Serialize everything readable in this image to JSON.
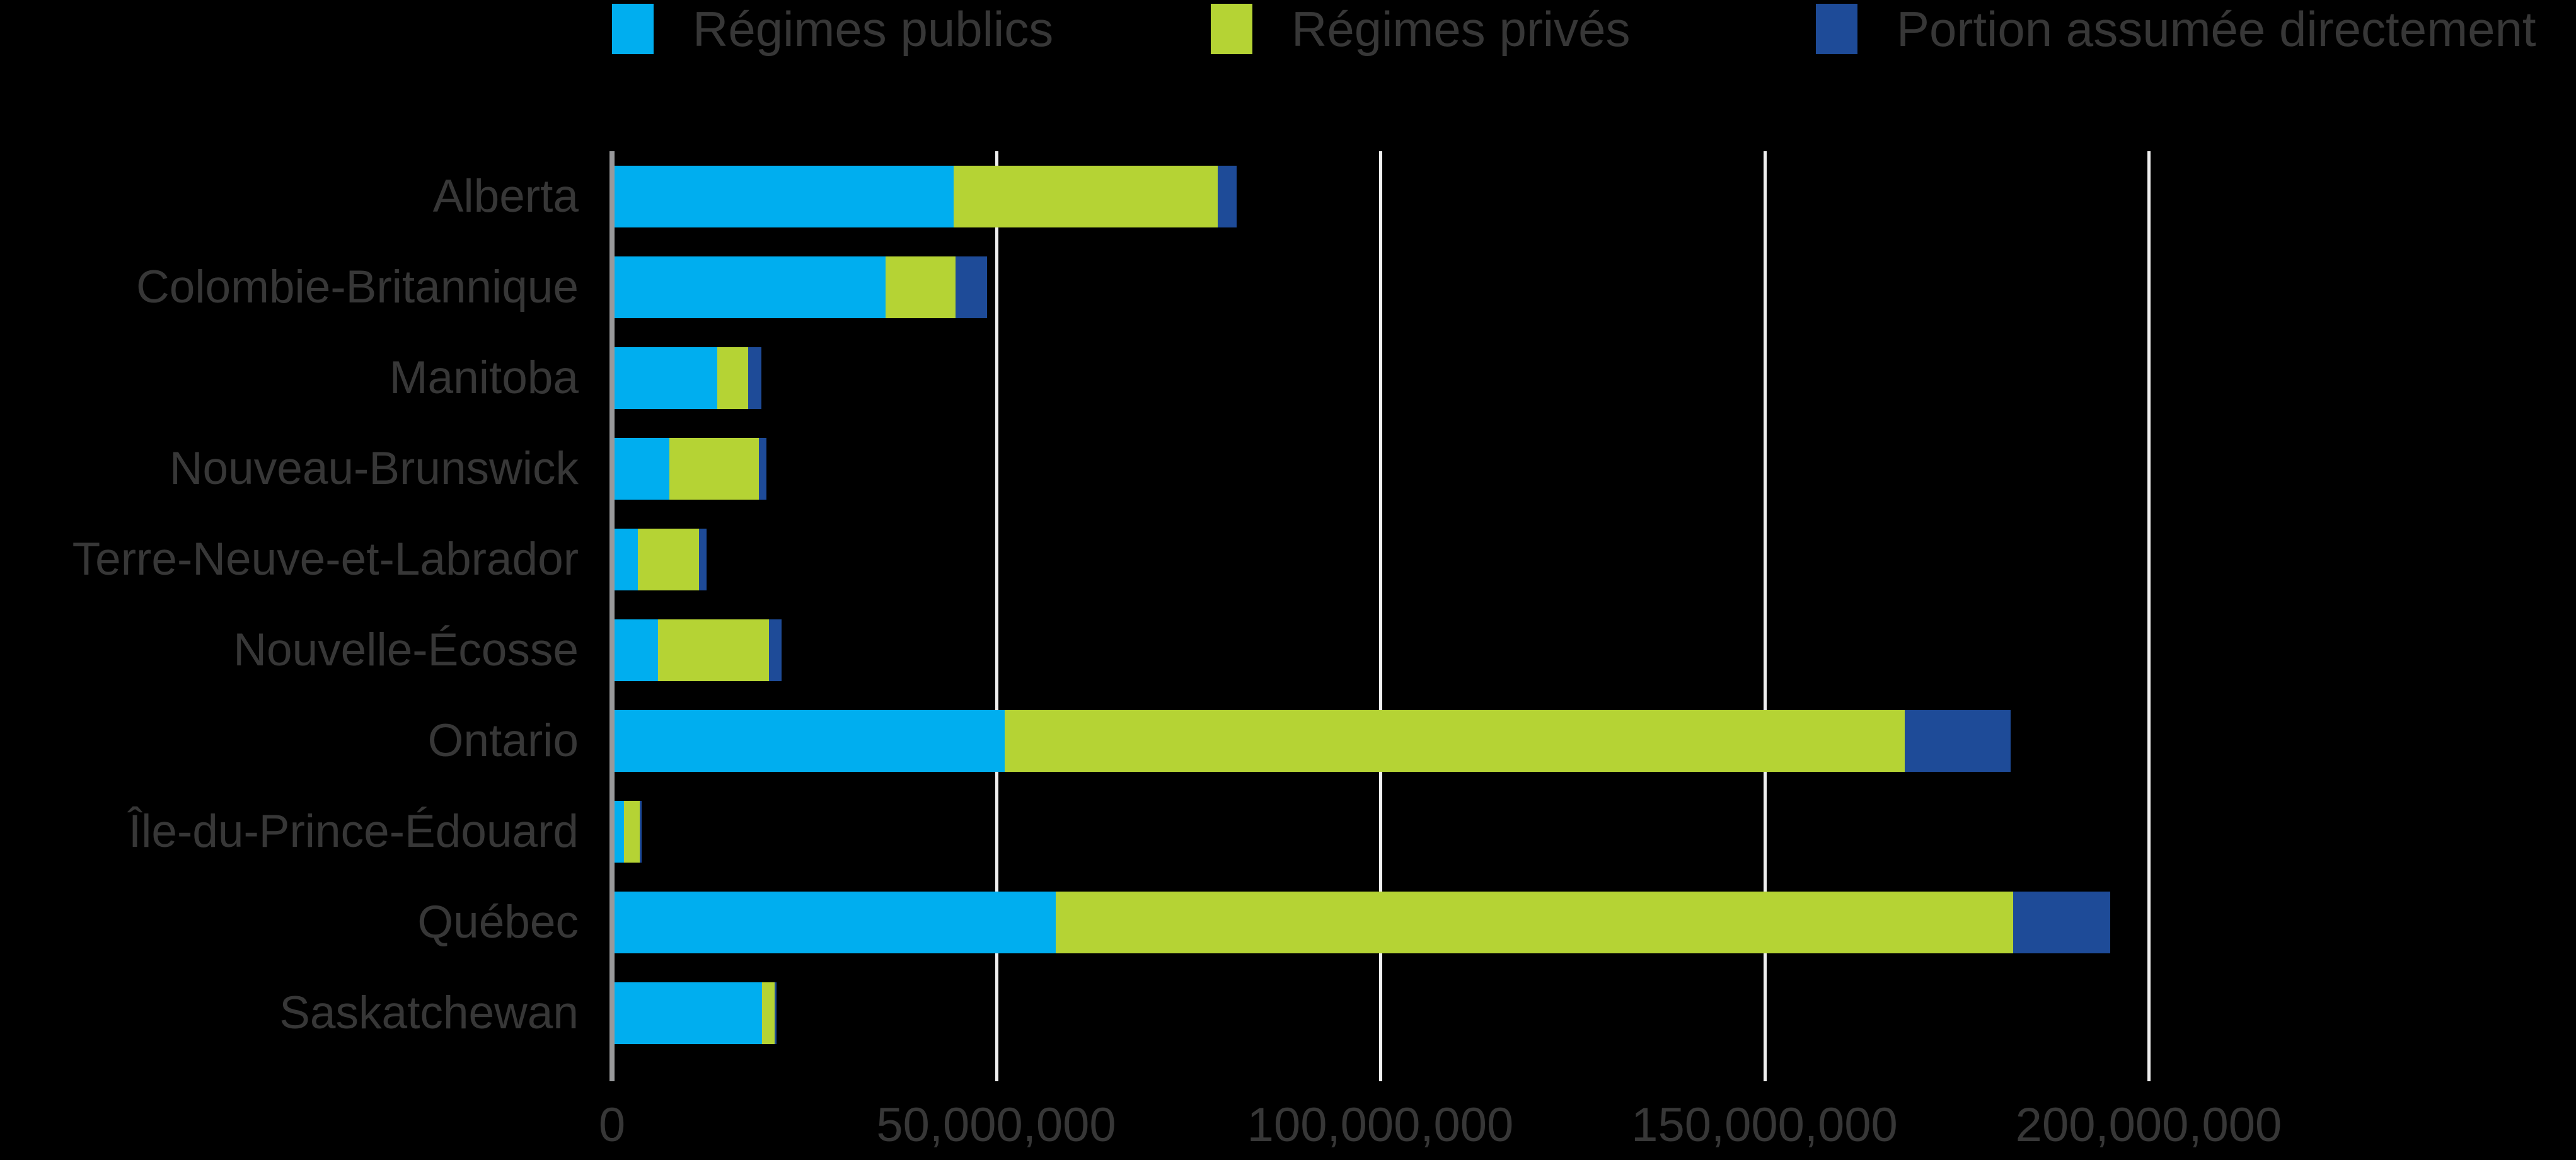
{
  "colors": {
    "publics": "#00AEEF",
    "prives": "#B5D334",
    "portion": "#1E4B98",
    "text": "#373737",
    "axis_line": "#98999B",
    "gridline": "#EFEFEF",
    "background": "#000000"
  },
  "legend": {
    "items": [
      {
        "label": "Régimes publics",
        "color_key": "publics"
      },
      {
        "label": "Régimes privés",
        "color_key": "prives"
      },
      {
        "label": "Portion assumée directement",
        "color_key": "portion"
      }
    ]
  },
  "chart_data": {
    "type": "bar",
    "orientation": "horizontal",
    "stacked": true,
    "title": "",
    "xlabel": "",
    "ylabel": "",
    "grid": true,
    "legend_position": "top",
    "categories": [
      "Alberta",
      "Colombie-Britannique",
      "Manitoba",
      "Nouveau-Brunswick",
      "Terre-Neuve-et-Labrador",
      "Nouvelle-Écosse",
      "Ontario",
      "Île-du-Prince-Édouard",
      "Québec",
      "Saskatchewan"
    ],
    "series": [
      {
        "name": "Régimes publics",
        "color_key": "publics",
        "values": [
          44100000,
          35300000,
          13400000,
          7100000,
          3000000,
          5700000,
          50800000,
          1200000,
          57400000,
          19200000
        ]
      },
      {
        "name": "Régimes privés",
        "color_key": "prives",
        "values": [
          34400000,
          9100000,
          4000000,
          11700000,
          8000000,
          14400000,
          117100000,
          2100000,
          124600000,
          1600000
        ]
      },
      {
        "name": "Portion assumée directement",
        "color_key": "portion",
        "values": [
          2500000,
          4100000,
          1700000,
          1000000,
          1000000,
          1600000,
          13800000,
          200000,
          12700000,
          300000
        ]
      }
    ],
    "x_axis": {
      "tick_labels": [
        "0",
        "50,000,000",
        "100,000,000",
        "150,000,000",
        "200,000,000"
      ],
      "tick_values": [
        0,
        50000000,
        100000000,
        150000000,
        200000000
      ],
      "range": [
        0,
        200000000
      ]
    }
  }
}
